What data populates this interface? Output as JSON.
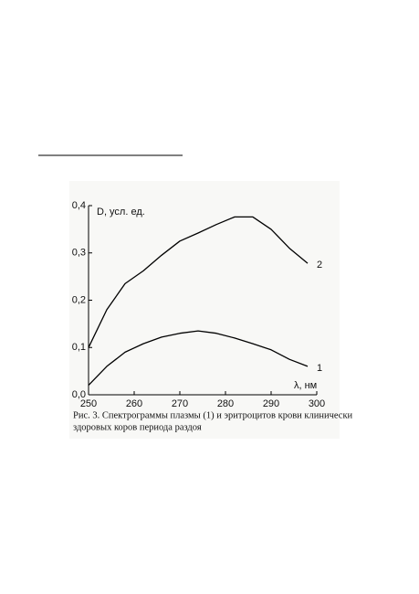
{
  "chart_data": {
    "type": "line",
    "y_label": "D, усл. ед.",
    "x_label": "λ, нм",
    "caption": [
      "Рис. 3. Спектрограммы плазмы (1) и эритроцитов крови клинически",
      "здоровых коров периода раздоя"
    ],
    "x": [
      250,
      254,
      258,
      262,
      266,
      270,
      274,
      278,
      282,
      286,
      290,
      294,
      298
    ],
    "series": [
      {
        "name": "1",
        "color": "#000000",
        "values": [
          0.02,
          0.06,
          0.09,
          0.108,
          0.122,
          0.13,
          0.135,
          0.13,
          0.12,
          0.108,
          0.095,
          0.075,
          0.06
        ]
      },
      {
        "name": "2",
        "color": "#000000",
        "values": [
          0.1,
          0.18,
          0.235,
          0.262,
          0.295,
          0.325,
          0.342,
          0.36,
          0.376,
          0.376,
          0.35,
          0.31,
          0.278
        ]
      }
    ],
    "xlim": [
      250,
      300
    ],
    "ylim": [
      0,
      0.4
    ],
    "xticks": [
      250,
      260,
      270,
      280,
      290,
      300
    ],
    "yticks": [
      {
        "value": 0,
        "label": "0,0"
      },
      {
        "value": 0.1,
        "label": "0,1"
      },
      {
        "value": 0.2,
        "label": "0,2"
      },
      {
        "value": 0.3,
        "label": "0,3"
      },
      {
        "value": 0.4,
        "label": "0,4"
      }
    ]
  }
}
